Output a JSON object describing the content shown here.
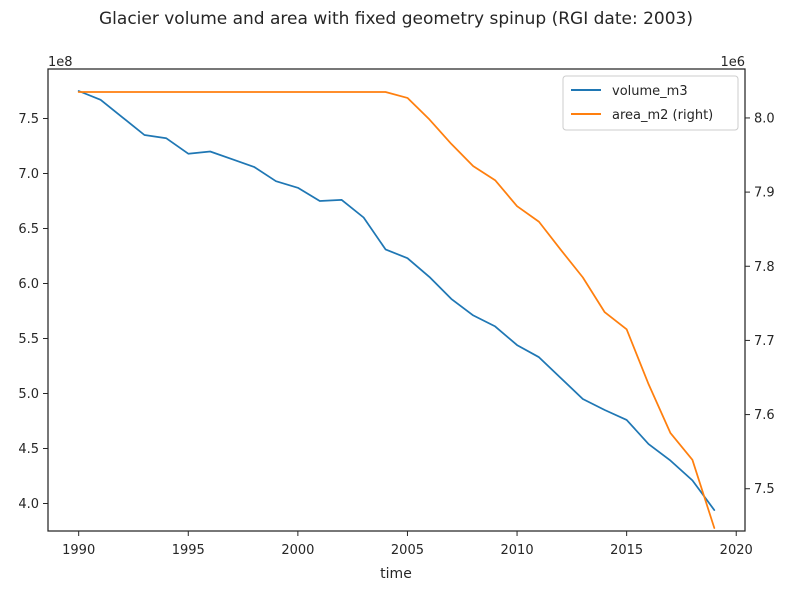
{
  "chart_data": {
    "type": "line",
    "title": "Glacier volume and area with fixed geometry spinup (RGI date: 2003)",
    "xlabel": "time",
    "ylabel": "",
    "ylabel_right": "",
    "grid": false,
    "legend_position": "top-right",
    "x": [
      1990,
      1991,
      1992,
      1993,
      1994,
      1995,
      1996,
      1997,
      1998,
      1999,
      2000,
      2001,
      2002,
      2003,
      2004,
      2005,
      2006,
      2007,
      2008,
      2009,
      2010,
      2011,
      2012,
      2013,
      2014,
      2015,
      2016,
      2017,
      2018,
      2019
    ],
    "xlim": [
      1988.6,
      2020.4
    ],
    "x_ticks": [
      1990,
      1995,
      2000,
      2005,
      2010,
      2015,
      2020
    ],
    "y_left": {
      "offset_label": "1e8",
      "lim": [
        3.75,
        7.95
      ],
      "ticks": [
        4.0,
        4.5,
        5.0,
        5.5,
        6.0,
        6.5,
        7.0,
        7.5
      ],
      "tick_labels": [
        "4.0",
        "4.5",
        "5.0",
        "5.5",
        "6.0",
        "6.5",
        "7.0",
        "7.5"
      ]
    },
    "y_right": {
      "offset_label": "1e6",
      "lim": [
        7.443,
        8.066
      ],
      "ticks": [
        7.5,
        7.6,
        7.7,
        7.8,
        7.9,
        8.0
      ],
      "tick_labels": [
        "7.5",
        "7.6",
        "7.7",
        "7.8",
        "7.9",
        "8.0"
      ]
    },
    "series": [
      {
        "name": "volume_m3",
        "axis": "left",
        "color": "#1f77b4",
        "values": [
          7.75,
          7.67,
          7.51,
          7.35,
          7.32,
          7.18,
          7.2,
          7.13,
          7.06,
          6.93,
          6.87,
          6.75,
          6.76,
          6.6,
          6.31,
          6.23,
          6.06,
          5.86,
          5.71,
          5.61,
          5.44,
          5.33,
          5.14,
          4.95,
          4.85,
          4.76,
          4.54,
          4.39,
          4.21,
          3.94
        ]
      },
      {
        "name": "area_m2 (right)",
        "axis": "right",
        "color": "#ff7f0e",
        "values": [
          8.035,
          8.035,
          8.035,
          8.035,
          8.035,
          8.035,
          8.035,
          8.035,
          8.035,
          8.035,
          8.035,
          8.035,
          8.035,
          8.035,
          8.035,
          8.027,
          7.998,
          7.965,
          7.935,
          7.916,
          7.881,
          7.86,
          7.822,
          7.785,
          7.738,
          7.715,
          7.641,
          7.575,
          7.539,
          7.447
        ]
      }
    ]
  }
}
